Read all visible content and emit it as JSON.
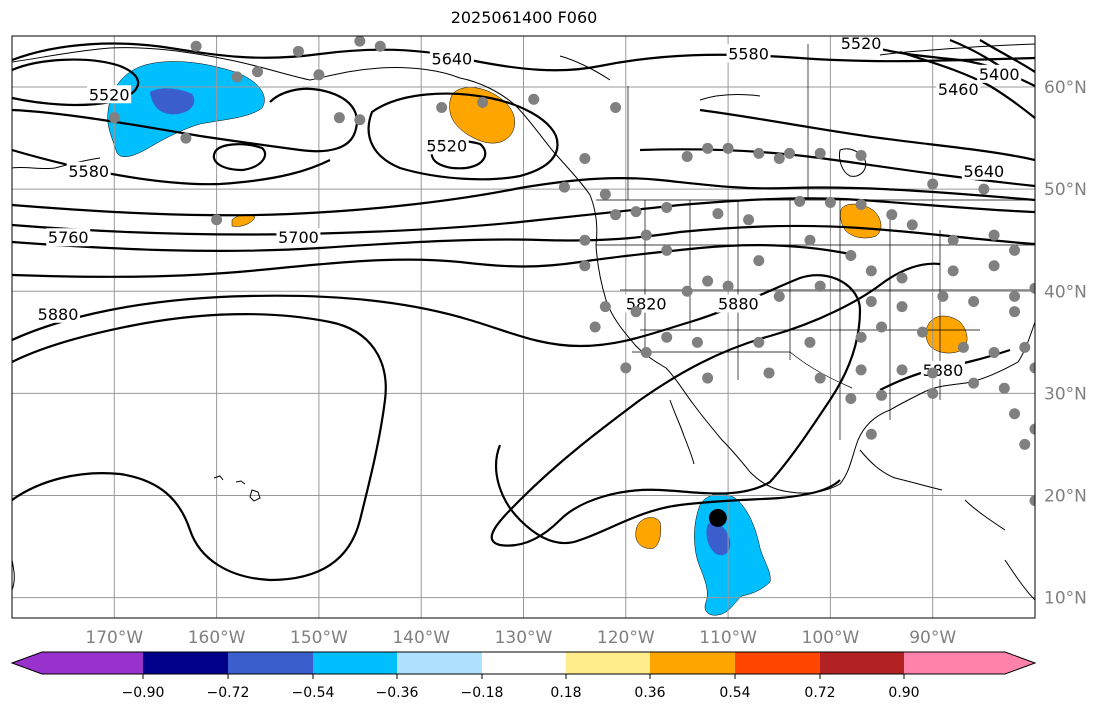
{
  "title": "2025061400 F060",
  "map": {
    "projection": "PlateCarree",
    "lon_range": [
      -180,
      -80
    ],
    "lat_range": [
      8,
      65
    ],
    "grid": true,
    "lon_labels": [
      "170°W",
      "160°W",
      "150°W",
      "140°W",
      "130°W",
      "120°W",
      "110°W",
      "100°W",
      "90°W"
    ],
    "lat_labels": [
      "60°N",
      "50°N",
      "40°N",
      "30°N",
      "20°N",
      "10°N"
    ]
  },
  "contours": {
    "units": "gpm",
    "labels": [
      {
        "text": "5520",
        "lon": -170.5,
        "lat": 59
      },
      {
        "text": "5580",
        "lon": -172.5,
        "lat": 51.5
      },
      {
        "text": "5760",
        "lon": -174.5,
        "lat": 45
      },
      {
        "text": "5880",
        "lon": -175.5,
        "lat": 37.5
      },
      {
        "text": "5640",
        "lon": -137,
        "lat": 62.5
      },
      {
        "text": "5520",
        "lon": -137.5,
        "lat": 54
      },
      {
        "text": "5700",
        "lon": -152,
        "lat": 45
      },
      {
        "text": "5580",
        "lon": -108,
        "lat": 63
      },
      {
        "text": "5520",
        "lon": -97,
        "lat": 64
      },
      {
        "text": "5460",
        "lon": -87.5,
        "lat": 59.5
      },
      {
        "text": "5400",
        "lon": -83.5,
        "lat": 61
      },
      {
        "text": "5640",
        "lon": -85,
        "lat": 51.5
      },
      {
        "text": "5820",
        "lon": -118,
        "lat": 38.5
      },
      {
        "text": "5880",
        "lon": -109,
        "lat": 38.5
      },
      {
        "text": "5880",
        "lon": -89,
        "lat": 32
      }
    ]
  },
  "anomalies": [
    {
      "id": "bering",
      "value": "-0.54",
      "color": "#00bfff",
      "core": "#3a5fcd"
    },
    {
      "id": "se-alaska",
      "value": "0.36",
      "color": "#ffa500"
    },
    {
      "id": "upper-midwest",
      "value": "0.36",
      "color": "#ffa500"
    },
    {
      "id": "tennessee",
      "value": "0.36",
      "color": "#ffa500"
    },
    {
      "id": "aleutian-small",
      "value": "0.36",
      "color": "#ffa500"
    },
    {
      "id": "east-pacific",
      "value": "-0.54",
      "color": "#00bfff",
      "core": "#3a5fcd"
    },
    {
      "id": "east-pacific-small",
      "value": "0.36",
      "color": "#ffa500"
    }
  ],
  "station_color": "#808080",
  "marker": {
    "lon": -111,
    "lat": 17.8,
    "color": "#000000"
  },
  "colorbar": {
    "colors": [
      "#9932cc",
      "#00008b",
      "#3a5fcd",
      "#00bfff",
      "#b0e2ff",
      "#ffffff",
      "#ffec8b",
      "#ffa500",
      "#ff4500",
      "#b22222",
      "#ff82ab"
    ],
    "tick_labels": [
      "−0.90",
      "−0.72",
      "−0.54",
      "−0.36",
      "−0.18",
      "0.18",
      "0.36",
      "0.54",
      "0.72",
      "0.90"
    ]
  }
}
